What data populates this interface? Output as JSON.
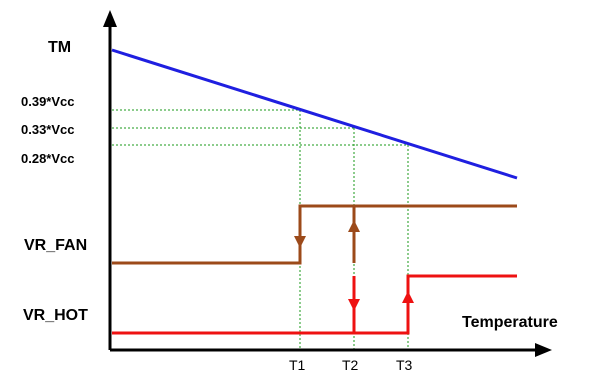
{
  "labels": {
    "y_axis": "TM",
    "x_axis": "Temperature",
    "voltage_high": "0.39*Vcc",
    "voltage_mid": "0.33*Vcc",
    "voltage_low": "0.28*Vcc",
    "signal_fan": "VR_FAN",
    "signal_hot": "VR_HOT",
    "t1": "T1",
    "t2": "T2",
    "t3": "T3"
  },
  "colors": {
    "axis": "#000000",
    "tm_line": "#1f1fe0",
    "vr_fan": "#9c4a1a",
    "vr_hot": "#ee1111",
    "guide": "#1a9a1a"
  }
}
